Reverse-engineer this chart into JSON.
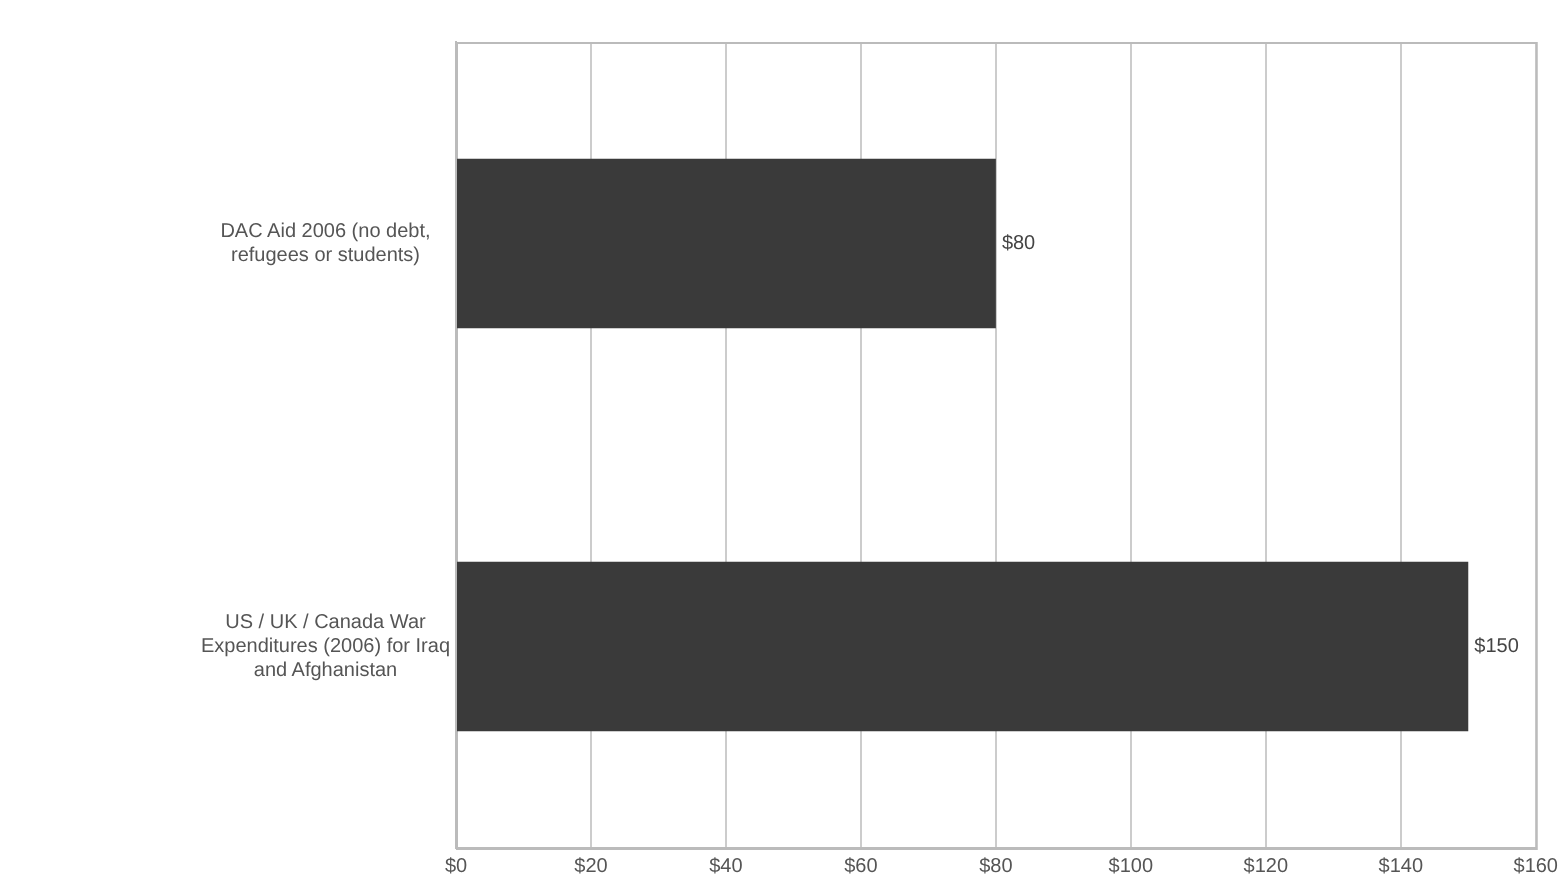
{
  "chart_data": {
    "type": "bar",
    "orientation": "horizontal",
    "categories": [
      "DAC Aid 2006 (no debt, refugees or students)",
      "US / UK / Canada War Expenditures (2006) for Iraq and Afghanistan"
    ],
    "values": [
      80,
      150
    ],
    "color": "#3a3a3a",
    "value_labels": [
      "$80",
      "$150"
    ],
    "xlim": [
      0,
      160
    ],
    "xticks": [
      {
        "value": 0,
        "label": "$0"
      },
      {
        "value": 20,
        "label": "$20"
      },
      {
        "value": 40,
        "label": "$40"
      },
      {
        "value": 60,
        "label": "$60"
      },
      {
        "value": 80,
        "label": "$80"
      },
      {
        "value": 100,
        "label": "$100"
      },
      {
        "value": 120,
        "label": "$120"
      },
      {
        "value": 140,
        "label": "$140"
      },
      {
        "value": 160,
        "label": "$160"
      }
    ],
    "grid": "x",
    "legend": false
  }
}
